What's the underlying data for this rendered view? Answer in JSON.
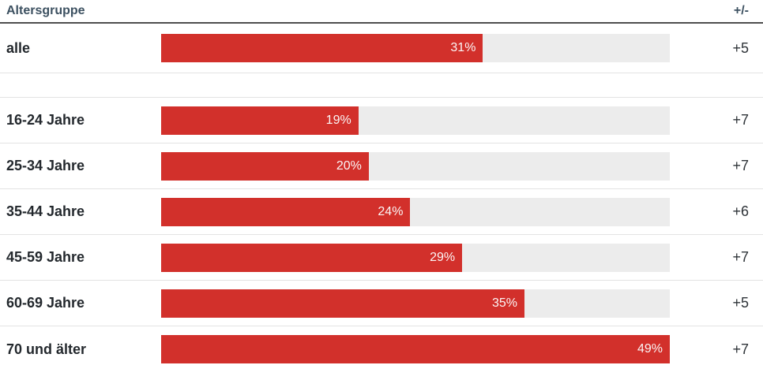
{
  "header": {
    "category_column_label": "Altersgruppe",
    "delta_column_label": "+/-"
  },
  "colors": {
    "bar_fill": "#d2302b",
    "bar_track": "#ececec",
    "separator": "#e3e3e3",
    "header_border": "#4e4e4e",
    "header_text": "#3d5161",
    "label_text": "#23282d",
    "value_text": "#2e3338",
    "bar_label_text": "#fbf6f6"
  },
  "chart_data": {
    "type": "bar",
    "orientation": "horizontal",
    "title": "",
    "xlabel": "",
    "ylabel": "Altersgruppe",
    "xlim": [
      0,
      49
    ],
    "grid": false,
    "legend": false,
    "value_suffix": "%",
    "categories": [
      "alle",
      "16-24 Jahre",
      "25-34 Jahre",
      "35-44 Jahre",
      "45-59 Jahre",
      "60-69 Jahre",
      "70 und älter"
    ],
    "values": [
      31,
      19,
      20,
      24,
      29,
      35,
      49
    ],
    "value_labels": [
      "31%",
      "19%",
      "20%",
      "24%",
      "29%",
      "35%",
      "49%"
    ],
    "deltas": [
      "+5",
      "+7",
      "+7",
      "+6",
      "+7",
      "+5",
      "+7"
    ],
    "group_separator_after_index": 0
  }
}
